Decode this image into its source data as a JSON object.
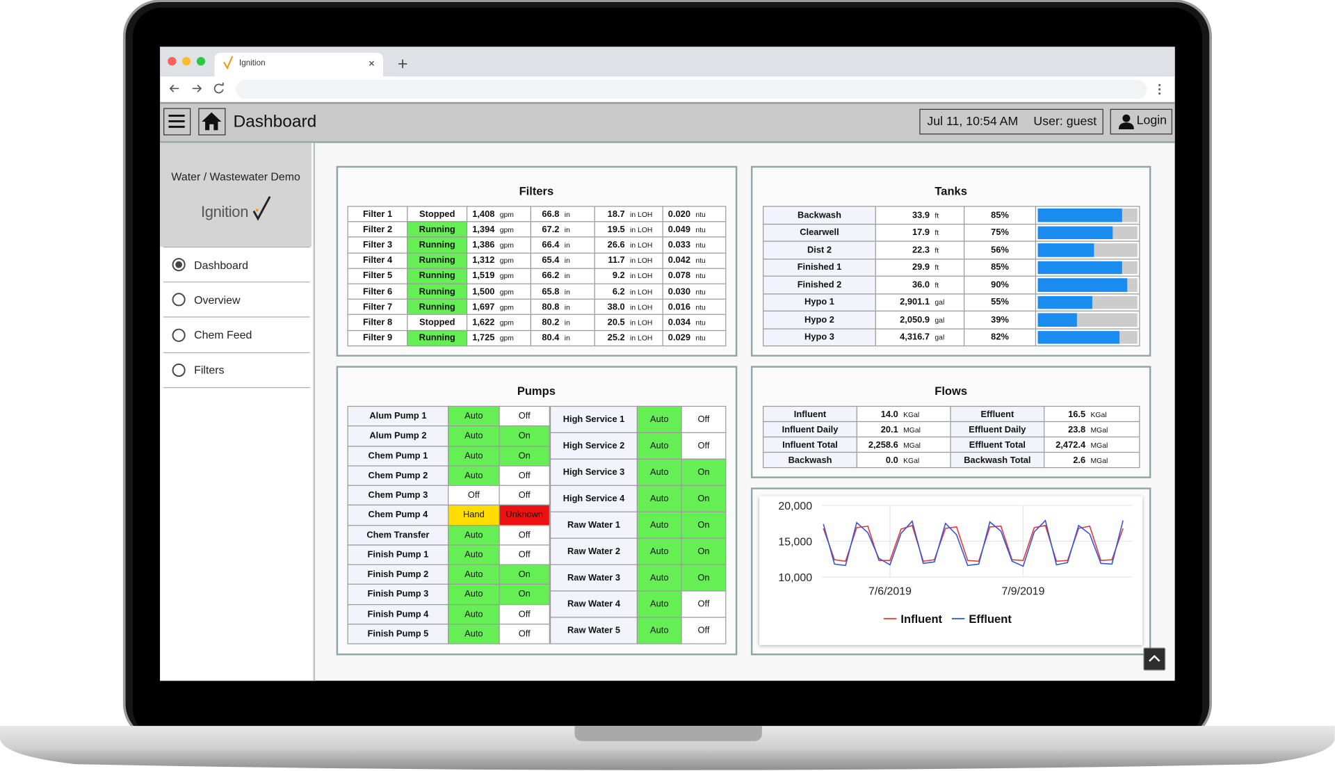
{
  "browser": {
    "tab_title": "Ignition"
  },
  "header": {
    "title": "Dashboard",
    "datetime": "Jul 11, 10:54 AM",
    "user": "User: guest",
    "login": "Login"
  },
  "sidebar": {
    "project": "Water / Wastewater Demo",
    "logo": "Ignition",
    "nav": [
      "Dashboard",
      "Overview",
      "Chem Feed",
      "Filters"
    ],
    "selected": 0
  },
  "filters": {
    "title": "Filters",
    "units": {
      "flow": "gpm",
      "level": "in",
      "loh": "in LOH",
      "turbidity": "ntu"
    },
    "status_colors": {
      "Running": "#66ee55",
      "Stopped": "#ffffff"
    },
    "rows": [
      {
        "name": "Filter 1",
        "status": "Stopped",
        "flow": "1,408",
        "level": "66.8",
        "loh": "18.7",
        "turbidity": "0.020"
      },
      {
        "name": "Filter 2",
        "status": "Running",
        "flow": "1,394",
        "level": "67.2",
        "loh": "19.5",
        "turbidity": "0.049"
      },
      {
        "name": "Filter 3",
        "status": "Running",
        "flow": "1,386",
        "level": "66.4",
        "loh": "26.6",
        "turbidity": "0.033"
      },
      {
        "name": "Filter 4",
        "status": "Running",
        "flow": "1,312",
        "level": "65.4",
        "loh": "11.7",
        "turbidity": "0.042"
      },
      {
        "name": "Filter 5",
        "status": "Running",
        "flow": "1,519",
        "level": "66.2",
        "loh": "9.2",
        "turbidity": "0.078"
      },
      {
        "name": "Filter 6",
        "status": "Running",
        "flow": "1,500",
        "level": "65.8",
        "loh": "6.2",
        "turbidity": "0.030"
      },
      {
        "name": "Filter 7",
        "status": "Running",
        "flow": "1,697",
        "level": "80.8",
        "loh": "38.0",
        "turbidity": "0.016"
      },
      {
        "name": "Filter 8",
        "status": "Stopped",
        "flow": "1,622",
        "level": "80.2",
        "loh": "20.5",
        "turbidity": "0.034"
      },
      {
        "name": "Filter 9",
        "status": "Running",
        "flow": "1,725",
        "level": "80.4",
        "loh": "25.2",
        "turbidity": "0.029"
      }
    ]
  },
  "tanks": {
    "title": "Tanks",
    "bar_color": "#1a8cf0",
    "rows": [
      {
        "name": "Backwash",
        "level": "33.9",
        "unit": "ft",
        "pct": 85,
        "pct_label": "85%"
      },
      {
        "name": "Clearwell",
        "level": "17.9",
        "unit": "ft",
        "pct": 75,
        "pct_label": "75%"
      },
      {
        "name": "Dist 2",
        "level": "22.3",
        "unit": "ft",
        "pct": 56,
        "pct_label": "56%"
      },
      {
        "name": "Finished 1",
        "level": "29.9",
        "unit": "ft",
        "pct": 85,
        "pct_label": "85%"
      },
      {
        "name": "Finished 2",
        "level": "36.0",
        "unit": "ft",
        "pct": 90,
        "pct_label": "90%"
      },
      {
        "name": "Hypo 1",
        "level": "2,901.1",
        "unit": "gal",
        "pct": 55,
        "pct_label": "55%"
      },
      {
        "name": "Hypo 2",
        "level": "2,050.9",
        "unit": "gal",
        "pct": 39,
        "pct_label": "39%"
      },
      {
        "name": "Hypo 3",
        "level": "4,316.7",
        "unit": "gal",
        "pct": 82,
        "pct_label": "82%"
      }
    ]
  },
  "pumps": {
    "title": "Pumps",
    "state_colors": {
      "Auto": "#66ee55",
      "On": "#66ee55",
      "Off": "#ffffff",
      "Hand": "#ffdd00",
      "Unknown": "#ee1111"
    },
    "left": [
      {
        "name": "Alum Pump 1",
        "mode": "Auto",
        "state": "Off"
      },
      {
        "name": "Alum Pump 2",
        "mode": "Auto",
        "state": "On"
      },
      {
        "name": "Chem Pump 1",
        "mode": "Auto",
        "state": "On"
      },
      {
        "name": "Chem Pump 2",
        "mode": "Auto",
        "state": "Off"
      },
      {
        "name": "Chem Pump 3",
        "mode": "Off",
        "state": "Off"
      },
      {
        "name": "Chem Pump 4",
        "mode": "Hand",
        "state": "Unknown"
      },
      {
        "name": "Chem Transfer",
        "mode": "Auto",
        "state": "Off"
      },
      {
        "name": "Finish Pump 1",
        "mode": "Auto",
        "state": "Off"
      },
      {
        "name": "Finish Pump 2",
        "mode": "Auto",
        "state": "On"
      },
      {
        "name": "Finish Pump 3",
        "mode": "Auto",
        "state": "On"
      },
      {
        "name": "Finish Pump 4",
        "mode": "Auto",
        "state": "Off"
      },
      {
        "name": "Finish Pump 5",
        "mode": "Auto",
        "state": "Off"
      }
    ],
    "right": [
      {
        "name": "High Service 1",
        "mode": "Auto",
        "state": "Off"
      },
      {
        "name": "High Service 2",
        "mode": "Auto",
        "state": "Off"
      },
      {
        "name": "High Service 3",
        "mode": "Auto",
        "state": "On"
      },
      {
        "name": "High Service 4",
        "mode": "Auto",
        "state": "On"
      },
      {
        "name": "Raw Water 1",
        "mode": "Auto",
        "state": "On"
      },
      {
        "name": "Raw Water 2",
        "mode": "Auto",
        "state": "On"
      },
      {
        "name": "Raw Water 3",
        "mode": "Auto",
        "state": "On"
      },
      {
        "name": "Raw Water 4",
        "mode": "Auto",
        "state": "Off"
      },
      {
        "name": "Raw Water 5",
        "mode": "Auto",
        "state": "Off"
      }
    ]
  },
  "flows": {
    "title": "Flows",
    "rows": [
      [
        {
          "name": "Influent",
          "value": "14.0",
          "unit": "KGal"
        },
        {
          "name": "Effluent",
          "value": "16.5",
          "unit": "KGal"
        }
      ],
      [
        {
          "name": "Influent Daily",
          "value": "20.1",
          "unit": "MGal"
        },
        {
          "name": "Effluent Daily",
          "value": "23.8",
          "unit": "MGal"
        }
      ],
      [
        {
          "name": "Influent Total",
          "value": "2,258.6",
          "unit": "MGal"
        },
        {
          "name": "Effluent Total",
          "value": "2,472.4",
          "unit": "MGal"
        }
      ],
      [
        {
          "name": "Backwash",
          "value": "0.0",
          "unit": "KGal"
        },
        {
          "name": "Backwash Total",
          "value": "2.6",
          "unit": "MGal"
        }
      ]
    ]
  },
  "trend": {
    "type": "line",
    "x": [
      "2019-07-04T12:00",
      "2019-07-04T18:00",
      "2019-07-05T00:00",
      "2019-07-05T06:00",
      "2019-07-05T12:00",
      "2019-07-05T18:00",
      "2019-07-06T00:00",
      "2019-07-06T06:00",
      "2019-07-06T12:00",
      "2019-07-06T18:00",
      "2019-07-07T00:00",
      "2019-07-07T06:00",
      "2019-07-07T12:00",
      "2019-07-07T18:00",
      "2019-07-08T00:00",
      "2019-07-08T06:00",
      "2019-07-08T12:00",
      "2019-07-08T18:00",
      "2019-07-09T00:00",
      "2019-07-09T06:00",
      "2019-07-09T12:00",
      "2019-07-09T18:00",
      "2019-07-10T00:00",
      "2019-07-10T06:00",
      "2019-07-10T12:00",
      "2019-07-10T18:00",
      "2019-07-11T00:00",
      "2019-07-11T06:00"
    ],
    "xlim": [
      "2019-07-04T11:00",
      "2019-07-11T11:00"
    ],
    "xticks": [
      {
        "value": "2019-07-06T00:00",
        "label": "7/6/2019"
      },
      {
        "value": "2019-07-09T00:00",
        "label": "7/9/2019"
      }
    ],
    "ylim": [
      10000,
      20000
    ],
    "yticks": [
      {
        "value": 10000,
        "label": "10,000"
      },
      {
        "value": 15000,
        "label": "15,000"
      },
      {
        "value": 20000,
        "label": "20,000"
      }
    ],
    "grid": true,
    "series": [
      {
        "name": "Influent",
        "color": "#e53935",
        "values": [
          16800,
          12400,
          12200,
          16900,
          17100,
          12300,
          12300,
          16700,
          17200,
          12200,
          12400,
          16800,
          17000,
          12300,
          12200,
          17000,
          17100,
          12400,
          12300,
          16900,
          17200,
          12200,
          12300,
          16800,
          17100,
          12300,
          12400,
          16800
        ]
      },
      {
        "name": "Effluent",
        "color": "#3355dd",
        "values": [
          17400,
          11800,
          11600,
          17600,
          16200,
          12600,
          11700,
          16100,
          17800,
          11900,
          12100,
          17500,
          15900,
          11600,
          11800,
          17700,
          16400,
          12200,
          11500,
          16300,
          17900,
          11700,
          12000,
          17200,
          16000,
          11900,
          11800,
          17900
        ]
      }
    ]
  }
}
